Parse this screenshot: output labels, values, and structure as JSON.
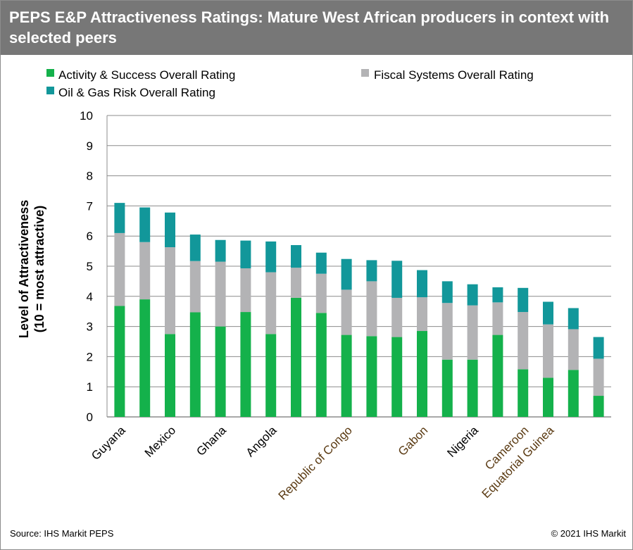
{
  "header": {
    "title": "PEPS E&P Attractiveness Ratings: Mature West African producers in context with selected peers"
  },
  "footer": {
    "source": "Source: IHS Markit PEPS",
    "copyright": "© 2021 IHS Markit"
  },
  "colors": {
    "activity": "#14b14b",
    "fiscal": "#b3b3b5",
    "risk": "#12979a",
    "grid": "#8c8c8c",
    "highlight_label": "#5a3a12"
  },
  "chart_data": {
    "type": "bar",
    "stacked": true,
    "ylabel": "Level of Attractiveness",
    "ylabel_line2": "(10 = most attractive)",
    "ylim": [
      0,
      10
    ],
    "yticks": [
      0,
      1,
      2,
      3,
      4,
      5,
      6,
      7,
      8,
      9,
      10
    ],
    "grid": true,
    "legend_position": "top",
    "bar_count": 20,
    "category_labels": [
      {
        "bar_index": 0,
        "text": "Guyana",
        "highlight": false
      },
      {
        "bar_index": 2,
        "text": "Mexico",
        "highlight": false
      },
      {
        "bar_index": 4,
        "text": "Ghana",
        "highlight": false
      },
      {
        "bar_index": 6,
        "text": "Angola",
        "highlight": false
      },
      {
        "bar_index": 9,
        "text": "Republic of Congo",
        "highlight": true
      },
      {
        "bar_index": 12,
        "text": "Gabon",
        "highlight": true
      },
      {
        "bar_index": 14,
        "text": "Nigeria",
        "highlight": false
      },
      {
        "bar_index": 16,
        "text": "Cameroon",
        "highlight": true
      },
      {
        "bar_index": 17,
        "text": "Equatorial Guinea",
        "highlight": true
      }
    ],
    "series": [
      {
        "name": "Activity & Success Overall Rating",
        "color_key": "activity",
        "values": [
          3.68,
          3.9,
          2.75,
          3.47,
          3.0,
          3.48,
          2.75,
          3.95,
          3.45,
          2.72,
          2.68,
          2.65,
          2.85,
          1.9,
          1.9,
          2.72,
          1.58,
          1.3,
          1.56,
          0.7
        ]
      },
      {
        "name": "Fiscal Systems Overall Rating",
        "color_key": "fiscal",
        "values": [
          2.42,
          1.9,
          2.88,
          1.7,
          2.15,
          1.45,
          2.05,
          1.0,
          1.3,
          1.5,
          1.82,
          1.3,
          1.12,
          1.88,
          1.8,
          1.08,
          1.9,
          1.77,
          1.35,
          1.23
        ]
      },
      {
        "name": "Oil & Gas Risk Overall Rating",
        "color_key": "risk",
        "values": [
          1.0,
          1.15,
          1.15,
          0.88,
          0.72,
          0.92,
          1.02,
          0.75,
          0.7,
          1.02,
          0.7,
          1.23,
          0.9,
          0.72,
          0.7,
          0.5,
          0.8,
          0.75,
          0.7,
          0.72
        ]
      }
    ]
  }
}
